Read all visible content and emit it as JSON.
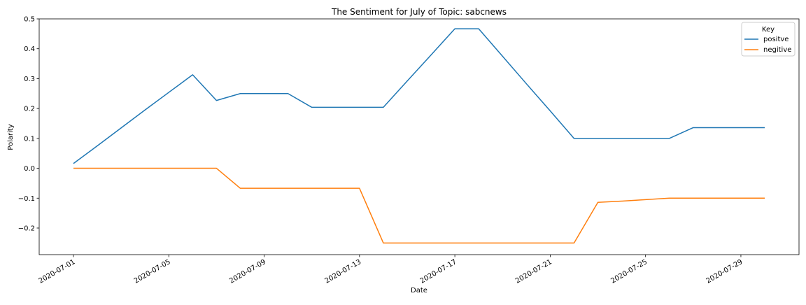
{
  "chart_data": {
    "type": "line",
    "title": "The Sentiment for July of Topic: sabcnews",
    "xlabel": "Date",
    "ylabel": "Polarity",
    "x_ticks": [
      "2020-07-01",
      "2020-07-05",
      "2020-07-09",
      "2020-07-13",
      "2020-07-17",
      "2020-07-21",
      "2020-07-25",
      "2020-07-29"
    ],
    "y_ticks": [
      "0.5",
      "0.4",
      "0.3",
      "0.2",
      "0.1",
      "0.0",
      "−0.1",
      "−0.2"
    ],
    "y_tick_values": [
      0.5,
      0.4,
      0.3,
      0.2,
      0.1,
      0.0,
      -0.1,
      -0.2
    ],
    "xlim": [
      "2020-06-29T13:30",
      "2020-07-31T10:30"
    ],
    "ylim": [
      -0.289,
      0.5
    ],
    "grid": false,
    "legend": {
      "title": "Key",
      "placement": "upper right"
    },
    "x": [
      "2020-07-01",
      "2020-07-02",
      "2020-07-03",
      "2020-07-04",
      "2020-07-05",
      "2020-07-06",
      "2020-07-07",
      "2020-07-08",
      "2020-07-09",
      "2020-07-10",
      "2020-07-11",
      "2020-07-12",
      "2020-07-13",
      "2020-07-14",
      "2020-07-15",
      "2020-07-16",
      "2020-07-17",
      "2020-07-18",
      "2020-07-19",
      "2020-07-20",
      "2020-07-21",
      "2020-07-22",
      "2020-07-23",
      "2020-07-24",
      "2020-07-25",
      "2020-07-26",
      "2020-07-27",
      "2020-07-28",
      "2020-07-29",
      "2020-07-30"
    ],
    "series": [
      {
        "name": "positve",
        "color": "#1f77b4",
        "values": [
          0.016,
          0.075,
          0.135,
          0.195,
          0.254,
          0.313,
          0.227,
          0.25,
          0.25,
          0.25,
          0.204,
          0.204,
          0.204,
          0.204,
          0.292,
          0.379,
          0.467,
          0.467,
          0.375,
          0.283,
          0.192,
          0.1,
          0.1,
          0.1,
          0.1,
          0.1,
          0.136,
          0.136,
          0.136,
          0.136
        ]
      },
      {
        "name": "negitive",
        "color": "#ff7f0e",
        "values": [
          0.0,
          0.0,
          0.0,
          0.0,
          0.0,
          0.0,
          0.0,
          -0.067,
          -0.067,
          -0.067,
          -0.067,
          -0.067,
          -0.067,
          -0.25,
          -0.25,
          -0.25,
          -0.25,
          -0.25,
          -0.25,
          -0.25,
          -0.25,
          -0.25,
          -0.114,
          -0.11,
          -0.105,
          -0.1,
          -0.1,
          -0.1,
          -0.1,
          -0.1
        ]
      }
    ]
  }
}
